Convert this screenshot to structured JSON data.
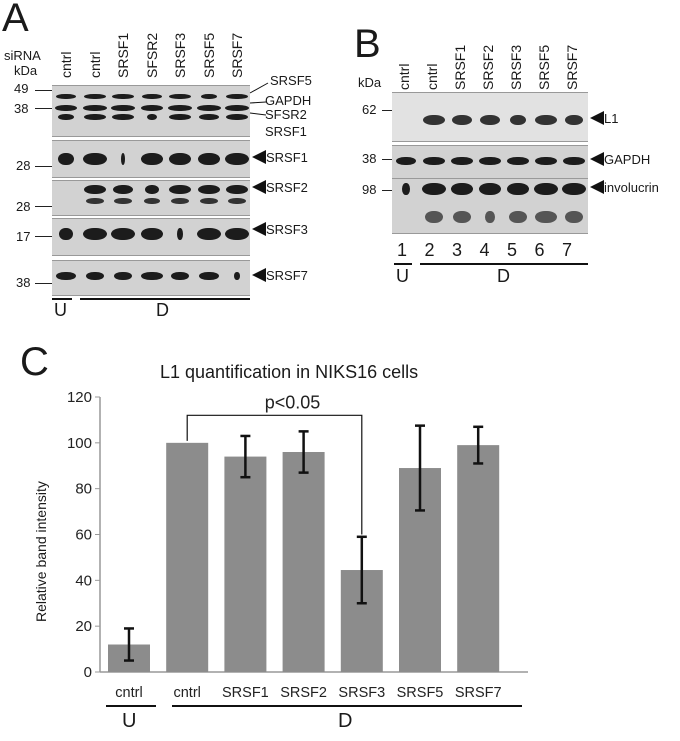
{
  "panelA": {
    "letter": "A",
    "header_sirna": "siRNA",
    "header_kda": "kDa",
    "lanes": [
      "cntrl",
      "cntrl",
      "SRSF1",
      "SFSR2",
      "SRSF3",
      "SRSF5",
      "SRSF7"
    ],
    "blot1": {
      "markers": [
        "49",
        "38"
      ],
      "labels": [
        "SRSF5",
        "GAPDH",
        "SFSR2",
        "SRSF1"
      ]
    },
    "blot2": {
      "marker": "28",
      "label": "SRSF1"
    },
    "blot3": {
      "marker": "28",
      "label": "SRSF2"
    },
    "blot4": {
      "marker": "17",
      "label": "SRSF3"
    },
    "blot5": {
      "marker": "38",
      "label": "SRSF7"
    },
    "group_u": "U",
    "group_d": "D"
  },
  "panelB": {
    "letter": "B",
    "header_kda": "kDa",
    "lanes": [
      "cntrl",
      "cntrl",
      "SRSF1",
      "SRSF2",
      "SRSF3",
      "SRSF5",
      "SRSF7"
    ],
    "blot1": {
      "marker": "62",
      "label": "L1"
    },
    "blot2": {
      "marker": "38",
      "label": "GAPDH"
    },
    "blot3": {
      "marker": "98",
      "label": "involucrin"
    },
    "lane_numbers": [
      "1",
      "2",
      "3",
      "4",
      "5",
      "6",
      "7"
    ],
    "group_u": "U",
    "group_d": "D"
  },
  "panelC": {
    "letter": "C",
    "pvalue": "p<0.05",
    "group_u": "U",
    "group_d": "D"
  },
  "chart_data": {
    "type": "bar",
    "title": "L1 quantification in NIKS16 cells",
    "ylabel": "Relative band intensity",
    "xlabel": "",
    "categories": [
      "cntrl",
      "cntrl",
      "SRSF1",
      "SRSF2",
      "SRSF3",
      "SRSF5",
      "SRSF7"
    ],
    "values": [
      12,
      100,
      94,
      96,
      44.5,
      89,
      99
    ],
    "error": [
      7,
      0,
      9,
      9,
      14.5,
      18.5,
      8
    ],
    "ylim": [
      0,
      120
    ],
    "yticks": [
      "0",
      "20",
      "40",
      "60",
      "80",
      "100",
      "120"
    ],
    "bar_color": "#8c8c8c",
    "grid": false,
    "annotation": "p<0.05"
  }
}
